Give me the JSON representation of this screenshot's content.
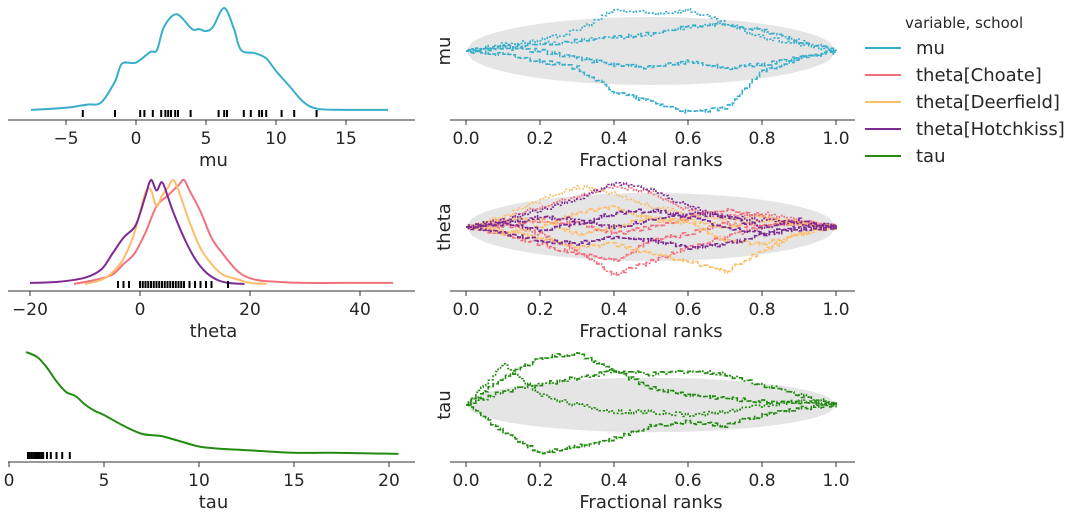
{
  "legend": {
    "title": "variable, school",
    "placement": "right",
    "items": [
      {
        "label": "mu",
        "color": "#38aecb"
      },
      {
        "label": "theta[Choate]",
        "color": "#f2707e"
      },
      {
        "label": "theta[Deerfield]",
        "color": "#fdbe6c"
      },
      {
        "label": "theta[Hotchkiss]",
        "color": "#7d2a92"
      },
      {
        "label": "tau",
        "color": "#238a12"
      }
    ]
  },
  "chart_data": [
    {
      "type": "line",
      "panel": "density",
      "xlabel": "mu",
      "xlim": [
        -8.5,
        20.5
      ],
      "xticks": [
        -5,
        0,
        5,
        10,
        15
      ],
      "series": [
        {
          "color": "#38aecb",
          "x": [
            -7.5,
            -5,
            -3.5,
            -2.5,
            -1.5,
            -1,
            0,
            1,
            1.5,
            2,
            2.9,
            4,
            4.5,
            5,
            5.5,
            6.3,
            7,
            7.5,
            8.5,
            9.3,
            10,
            11,
            12,
            13,
            15,
            18
          ],
          "y": [
            0.03,
            0.05,
            0.08,
            0.1,
            0.3,
            0.47,
            0.48,
            0.58,
            0.6,
            0.82,
            0.94,
            0.8,
            0.8,
            0.78,
            0.82,
            1.0,
            0.8,
            0.6,
            0.57,
            0.52,
            0.4,
            0.25,
            0.1,
            0.04,
            0.03,
            0.03
          ]
        }
      ],
      "rug": [
        -3.8,
        -1.5,
        0.3,
        0.6,
        1.2,
        1.8,
        2.1,
        2.3,
        2.5,
        2.8,
        3.0,
        3.9,
        5.9,
        6.3,
        6.5,
        7.7,
        8.2,
        8.8,
        9.0,
        9.3,
        10.4,
        11.3,
        12.9
      ]
    },
    {
      "type": "line",
      "panel": "density",
      "xlabel": "theta",
      "xlim": [
        -22,
        51
      ],
      "xticks": [
        -20,
        0,
        20,
        40
      ],
      "series": [
        {
          "color": "#f2707e",
          "x": [
            -12,
            -8,
            -5,
            -3,
            -1,
            1,
            3,
            5,
            7,
            8,
            9,
            11,
            13,
            15,
            18,
            21,
            25,
            30,
            40,
            46
          ],
          "y": [
            0.01,
            0.05,
            0.1,
            0.2,
            0.3,
            0.5,
            0.75,
            0.85,
            0.95,
            1.0,
            0.9,
            0.7,
            0.45,
            0.3,
            0.12,
            0.05,
            0.03,
            0.02,
            0.02,
            0.02
          ]
        },
        {
          "color": "#fdbe6c",
          "x": [
            -10,
            -7,
            -5,
            -3,
            -1,
            1,
            2,
            3,
            4,
            5,
            6,
            7,
            9,
            11,
            13,
            15,
            18,
            20,
            23
          ],
          "y": [
            0.01,
            0.05,
            0.12,
            0.25,
            0.5,
            0.88,
            0.9,
            0.75,
            0.85,
            0.92,
            1.0,
            0.9,
            0.6,
            0.35,
            0.2,
            0.1,
            0.05,
            0.02,
            0.01
          ]
        },
        {
          "color": "#7d2a92",
          "x": [
            -20,
            -15,
            -10,
            -7,
            -5,
            -3,
            -1,
            0,
            1,
            2,
            3,
            4,
            5,
            6,
            8,
            10,
            12,
            14,
            16,
            19
          ],
          "y": [
            0.02,
            0.03,
            0.07,
            0.15,
            0.3,
            0.45,
            0.55,
            0.68,
            0.85,
            1.0,
            0.9,
            0.98,
            0.85,
            0.7,
            0.45,
            0.25,
            0.12,
            0.05,
            0.02,
            0.01
          ]
        }
      ],
      "rug": [
        -4,
        -3,
        -2,
        0,
        0.5,
        1,
        1.5,
        2,
        2.5,
        3,
        3.5,
        4,
        4.5,
        5,
        5.5,
        6,
        6.5,
        7,
        7.5,
        8,
        9,
        10,
        11,
        12,
        13,
        16
      ]
    },
    {
      "type": "line",
      "panel": "density",
      "xlabel": "tau",
      "xlim": [
        -0.5,
        21.5
      ],
      "xticks": [
        0,
        5,
        10,
        15,
        20
      ],
      "series": [
        {
          "color": "#238a12",
          "x": [
            0.9,
            1.5,
            2,
            2.5,
            3,
            3.5,
            4,
            4.5,
            5,
            6,
            7,
            8,
            9,
            10,
            11,
            12,
            13,
            15,
            17,
            20.5
          ],
          "y": [
            1.0,
            0.95,
            0.85,
            0.72,
            0.62,
            0.58,
            0.5,
            0.44,
            0.4,
            0.3,
            0.22,
            0.2,
            0.15,
            0.1,
            0.08,
            0.07,
            0.06,
            0.04,
            0.04,
            0.03
          ]
        }
      ],
      "rug": [
        1.0,
        1.1,
        1.2,
        1.3,
        1.4,
        1.5,
        1.6,
        1.7,
        1.8,
        2.0,
        2.2,
        2.5,
        2.8,
        3.2
      ]
    },
    {
      "type": "line",
      "panel": "rank_ecdf",
      "ylabel": "mu",
      "xlabel": "Fractional ranks",
      "xlim": [
        0,
        1
      ],
      "xticks": [
        "0.0",
        "0.2",
        "0.4",
        "0.6",
        "0.8",
        "1.0"
      ],
      "x": [
        0,
        0.1,
        0.2,
        0.3,
        0.4,
        0.5,
        0.6,
        0.7,
        0.8,
        0.9,
        1.0
      ],
      "band": 0.1,
      "series": [
        {
          "color": "#38aecb",
          "style": "dotted",
          "y": [
            0,
            0.02,
            0.03,
            0.06,
            0.12,
            0.11,
            0.12,
            0.08,
            0.04,
            0.02,
            0
          ]
        },
        {
          "color": "#38aecb",
          "style": "dashed",
          "y": [
            0,
            -0.01,
            -0.03,
            -0.05,
            -0.12,
            -0.15,
            -0.18,
            -0.17,
            -0.06,
            -0.02,
            0
          ]
        },
        {
          "color": "#38aecb",
          "style": "dashdot",
          "y": [
            0,
            0.01,
            0.02,
            0.03,
            0.04,
            0.05,
            0.07,
            0.08,
            0.06,
            0.03,
            0
          ]
        },
        {
          "color": "#38aecb",
          "style": "dashed",
          "y": [
            0,
            0.01,
            0,
            -0.02,
            -0.04,
            -0.05,
            -0.03,
            -0.05,
            -0.04,
            -0.02,
            0
          ]
        }
      ]
    },
    {
      "type": "line",
      "panel": "rank_ecdf",
      "ylabel": "theta",
      "xlabel": "Fractional ranks",
      "xlim": [
        0,
        1
      ],
      "xticks": [
        "0.0",
        "0.2",
        "0.4",
        "0.6",
        "0.8",
        "1.0"
      ],
      "x": [
        0,
        0.1,
        0.2,
        0.3,
        0.4,
        0.5,
        0.6,
        0.7,
        0.8,
        0.9,
        1.0
      ],
      "band": 0.1,
      "series": [
        {
          "color": "#f2707e",
          "style": "dashed",
          "y": [
            0,
            -0.02,
            -0.05,
            -0.08,
            -0.1,
            -0.04,
            -0.02,
            0.01,
            0.0,
            0.02,
            0
          ]
        },
        {
          "color": "#f2707e",
          "style": "dotted",
          "y": [
            0,
            0.02,
            0.06,
            0.09,
            0.12,
            0.1,
            0.05,
            0.03,
            0.04,
            0.02,
            0
          ]
        },
        {
          "color": "#f2707e",
          "style": "dashdot",
          "y": [
            0,
            0.01,
            -0.02,
            -0.07,
            -0.14,
            -0.1,
            -0.06,
            -0.03,
            0,
            0.01,
            0
          ]
        },
        {
          "color": "#f2707e",
          "style": "dashed",
          "y": [
            0,
            0,
            0.02,
            0.01,
            -0.02,
            0.0,
            0.03,
            0.05,
            0.03,
            0.01,
            0
          ]
        },
        {
          "color": "#fdbe6c",
          "style": "dashed",
          "y": [
            0,
            -0.01,
            -0.03,
            -0.06,
            -0.05,
            -0.08,
            -0.1,
            -0.13,
            -0.07,
            -0.02,
            0
          ]
        },
        {
          "color": "#fdbe6c",
          "style": "dotted",
          "y": [
            0,
            0.03,
            0.08,
            0.12,
            0.1,
            0.06,
            0.04,
            0.02,
            0.03,
            0.01,
            0
          ]
        },
        {
          "color": "#fdbe6c",
          "style": "dashdot",
          "y": [
            0,
            0.02,
            0.02,
            -0.02,
            0.0,
            0.03,
            0.01,
            -0.04,
            -0.05,
            -0.02,
            0
          ]
        },
        {
          "color": "#fdbe6c",
          "style": "dashed",
          "y": [
            0,
            -0.02,
            0,
            0.04,
            0.06,
            0.02,
            0.02,
            0.0,
            0.02,
            0.01,
            0
          ]
        },
        {
          "color": "#7d2a92",
          "style": "dotted",
          "y": [
            0,
            0.02,
            0.05,
            0.08,
            0.13,
            0.11,
            0.06,
            0.03,
            0.02,
            0.01,
            0
          ]
        },
        {
          "color": "#7d2a92",
          "style": "dashed",
          "y": [
            0,
            -0.02,
            -0.04,
            -0.05,
            -0.03,
            -0.04,
            -0.06,
            -0.05,
            -0.02,
            -0.01,
            0
          ]
        },
        {
          "color": "#7d2a92",
          "style": "dashdot",
          "y": [
            0,
            0.01,
            0.03,
            0.02,
            0.0,
            0.02,
            0.04,
            0.03,
            0.0,
            0.02,
            0
          ]
        },
        {
          "color": "#7d2a92",
          "style": "dashed",
          "y": [
            0,
            0.01,
            -0.01,
            0.01,
            0.04,
            0.05,
            0.03,
            0.0,
            -0.02,
            0.0,
            0
          ]
        }
      ]
    },
    {
      "type": "line",
      "panel": "rank_ecdf",
      "ylabel": "tau",
      "xlabel": "Fractional ranks",
      "xlim": [
        0,
        1
      ],
      "xticks": [
        "0.0",
        "0.2",
        "0.4",
        "0.6",
        "0.8",
        "1.0"
      ],
      "x": [
        0,
        0.1,
        0.2,
        0.3,
        0.4,
        0.5,
        0.6,
        0.7,
        0.8,
        0.9,
        1.0
      ],
      "band": 0.08,
      "series": [
        {
          "color": "#238a12",
          "style": "dashed",
          "y": [
            0,
            0.08,
            0.14,
            0.15,
            0.1,
            0.05,
            0.03,
            0.02,
            0.01,
            0.01,
            0
          ]
        },
        {
          "color": "#238a12",
          "style": "dashed",
          "y": [
            0,
            -0.08,
            -0.14,
            -0.12,
            -0.1,
            -0.06,
            -0.05,
            -0.06,
            -0.03,
            -0.01,
            0
          ]
        },
        {
          "color": "#238a12",
          "style": "dotted",
          "y": [
            0,
            0.12,
            0.03,
            0,
            -0.02,
            -0.02,
            -0.03,
            -0.02,
            0,
            0.01,
            0
          ]
        },
        {
          "color": "#238a12",
          "style": "dashdot",
          "y": [
            0,
            0.04,
            0.06,
            0.08,
            0.1,
            0.09,
            0.1,
            0.09,
            0.06,
            0.03,
            0
          ]
        }
      ]
    }
  ]
}
